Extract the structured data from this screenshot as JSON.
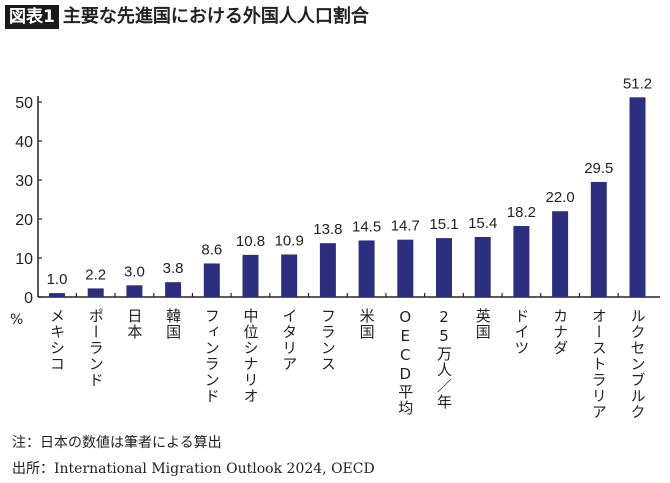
{
  "header": {
    "badge": "図表1",
    "title": "主要な先進国における外国人人口割合"
  },
  "chart_data": {
    "type": "bar",
    "categories": [
      "メキシコ",
      "ポーランド",
      "日本",
      "韓国",
      "フィンランド",
      "中位シナリオ",
      "イタリア",
      "フランス",
      "米国",
      "OECD平均",
      "25万人／年",
      "英国",
      "ドイツ",
      "カナダ",
      "オーストラリア",
      "ルクセンブルク"
    ],
    "values": [
      1.0,
      2.2,
      3.0,
      3.8,
      8.6,
      10.8,
      10.9,
      13.8,
      14.5,
      14.7,
      15.1,
      15.4,
      18.2,
      22.0,
      29.5,
      51.2
    ],
    "value_labels": [
      "1.0",
      "2.2",
      "3.0",
      "3.8",
      "8.6",
      "10.8",
      "10.9",
      "13.8",
      "14.5",
      "14.7",
      "15.1",
      "15.4",
      "18.2",
      "22.0",
      "29.5",
      "51.2"
    ],
    "ylim": [
      0,
      50
    ],
    "yticks": [
      0,
      10,
      20,
      30,
      40,
      50
    ],
    "ylabel": "%",
    "grid": false,
    "bar_color": "#2b2f7e"
  },
  "footer": {
    "note": "注：日本の数値は筆者による算出",
    "source": "出所：International Migration Outlook 2024, OECD"
  }
}
